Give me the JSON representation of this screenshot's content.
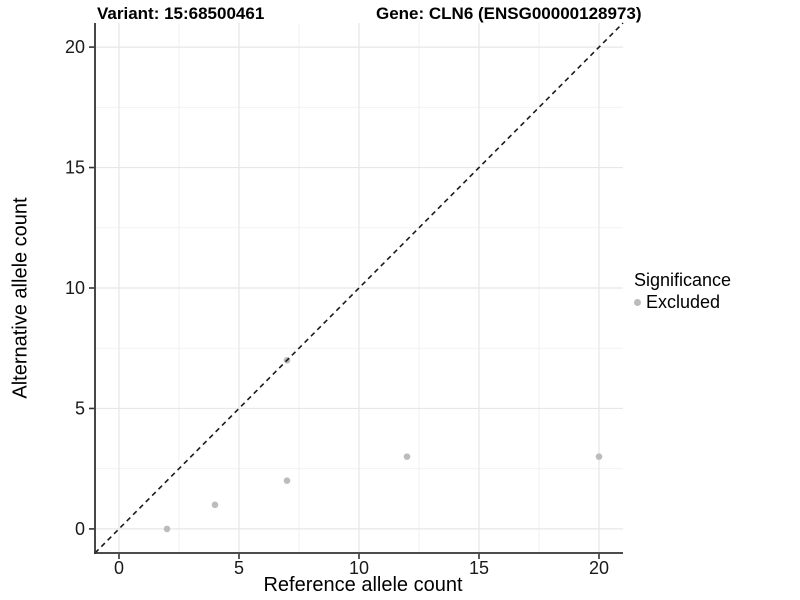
{
  "titles": {
    "left": "Variant: 15:68500461",
    "right": "Gene: CLN6 (ENSG00000128973)"
  },
  "chart_data": {
    "type": "scatter",
    "xlabel": "Reference allele count",
    "ylabel": "Alternative allele count",
    "xlim": [
      -1,
      21
    ],
    "ylim": [
      -1,
      21
    ],
    "x_ticks": [
      0,
      5,
      10,
      15,
      20
    ],
    "y_ticks": [
      0,
      5,
      10,
      15,
      20
    ],
    "x_minor_ticks": [
      2.5,
      7.5,
      12.5,
      17.5
    ],
    "y_minor_ticks": [
      2.5,
      7.5,
      12.5,
      17.5
    ],
    "grid": "on",
    "legend_position": "right",
    "series": [
      {
        "name": "Excluded",
        "color": "#bcbcbc",
        "points": [
          {
            "x": 2,
            "y": 0
          },
          {
            "x": 4,
            "y": 1
          },
          {
            "x": 7,
            "y": 2
          },
          {
            "x": 7,
            "y": 7
          },
          {
            "x": 12,
            "y": 3
          },
          {
            "x": 20,
            "y": 3
          }
        ]
      }
    ],
    "reference_line": {
      "kind": "identity",
      "from": [
        -1,
        -1
      ],
      "to": [
        21,
        21
      ],
      "style": "dashed",
      "color": "#1a1a1a"
    }
  },
  "legend": {
    "title": "Significance",
    "items": [
      {
        "label": "Excluded",
        "color": "#bcbcbc"
      }
    ]
  },
  "colors": {
    "background": "#ffffff",
    "point": "#bcbcbc",
    "grid_major": "#e7e7e7",
    "grid_minor": "#f1f1f1",
    "axis_line": "#333333",
    "tick": "#333333",
    "tick_label": "#1a1a1a"
  }
}
